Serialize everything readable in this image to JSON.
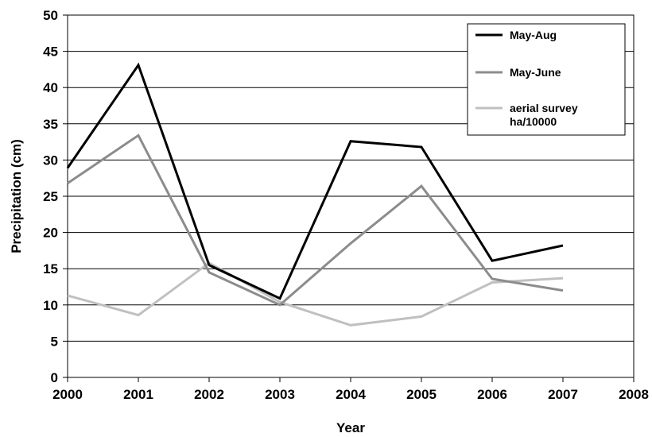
{
  "chart_data": {
    "type": "line",
    "title": "",
    "xlabel": "Year",
    "ylabel": "Precipitation (cm)",
    "xlim": [
      2000,
      2008
    ],
    "ylim": [
      0,
      50
    ],
    "x_ticks": [
      "2000",
      "2001",
      "2002",
      "2003",
      "2004",
      "2005",
      "2006",
      "2007",
      "2008"
    ],
    "y_ticks": [
      "0",
      "5",
      "10",
      "15",
      "20",
      "25",
      "30",
      "35",
      "40",
      "45",
      "50"
    ],
    "grid": "horizontal",
    "legend_position": "top-right",
    "x": [
      2000,
      2001,
      2002,
      2003,
      2004,
      2005,
      2006,
      2007
    ],
    "series": [
      {
        "name": "May-Aug",
        "legend_lines": [
          "May-Aug"
        ],
        "color": "#000000",
        "values": [
          28.9,
          43.1,
          15.5,
          10.9,
          32.6,
          31.8,
          16.1,
          18.2
        ]
      },
      {
        "name": "May-June",
        "legend_lines": [
          "May-June"
        ],
        "color": "#8c8c8c",
        "values": [
          26.8,
          33.4,
          14.5,
          10.0,
          18.5,
          26.4,
          13.6,
          12.0
        ]
      },
      {
        "name": "aerial survey ha/10000",
        "legend_lines": [
          "aerial survey",
          "ha/10000"
        ],
        "color": "#c0c0c0",
        "values": [
          11.3,
          8.6,
          15.8,
          10.4,
          7.2,
          8.4,
          13.1,
          13.7
        ]
      }
    ]
  }
}
